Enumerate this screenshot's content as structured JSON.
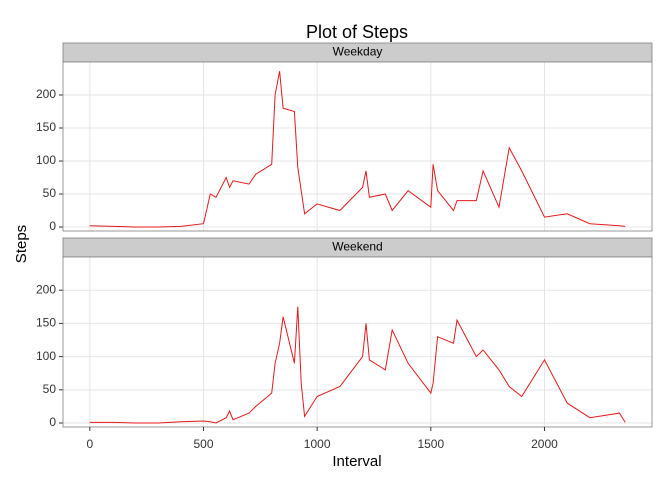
{
  "chart_data": {
    "type": "line",
    "title": "Plot of Steps",
    "x_label": "Interval",
    "y_label": "Steps",
    "x": [
      0,
      100,
      200,
      300,
      400,
      500,
      530,
      555,
      600,
      615,
      630,
      700,
      730,
      800,
      815,
      835,
      850,
      900,
      915,
      930,
      945,
      1000,
      1100,
      1200,
      1215,
      1230,
      1300,
      1330,
      1400,
      1500,
      1510,
      1530,
      1600,
      1615,
      1700,
      1730,
      1800,
      1845,
      1900,
      2000,
      2100,
      2200,
      2330,
      2355
    ],
    "series": [
      {
        "name": "Weekday",
        "color": "#e41a1c",
        "values": [
          2,
          1,
          0,
          0,
          1,
          5,
          50,
          45,
          75,
          60,
          70,
          65,
          80,
          95,
          200,
          236,
          180,
          175,
          90,
          55,
          20,
          35,
          25,
          60,
          85,
          45,
          50,
          25,
          55,
          30,
          95,
          55,
          25,
          40,
          40,
          85,
          30,
          120,
          85,
          15,
          20,
          5,
          2,
          1
        ]
      },
      {
        "name": "Weekend",
        "color": "#e41a1c",
        "values": [
          1,
          1,
          0,
          0,
          2,
          3,
          2,
          0,
          8,
          18,
          5,
          15,
          25,
          45,
          90,
          120,
          160,
          90,
          175,
          60,
          10,
          40,
          55,
          100,
          150,
          95,
          80,
          140,
          90,
          45,
          60,
          130,
          120,
          155,
          100,
          110,
          80,
          55,
          40,
          95,
          30,
          8,
          15,
          1
        ]
      }
    ],
    "xlim": [
      -118,
      2473
    ],
    "xticks": [
      0,
      500,
      1000,
      1500,
      2000
    ],
    "ylim": [
      -6,
      250
    ],
    "yticks": [
      0,
      50,
      100,
      150,
      200
    ],
    "grid": true
  }
}
